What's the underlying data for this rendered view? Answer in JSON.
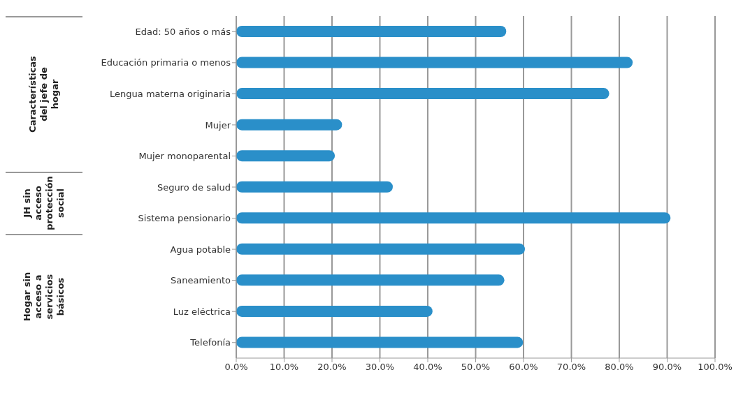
{
  "chart_data": {
    "type": "bar",
    "orientation": "horizontal",
    "categories": [
      "Edad: 50 años o más",
      "Educación primaria o menos",
      "Lengua materna originaria",
      "Mujer",
      "Mujer monoparental",
      "Seguro de salud",
      "Sistema pensionario",
      "Agua potable",
      "Saneamiento",
      "Luz eléctrica",
      "Telefonía"
    ],
    "values": [
      56.4,
      82.8,
      77.9,
      22.1,
      20.6,
      32.7,
      90.7,
      60.3,
      56.0,
      41.0,
      59.9
    ],
    "color": "#2a8fc9",
    "xlim": [
      0,
      100
    ],
    "xticks": [
      {
        "value": 0,
        "label": "0.0%"
      },
      {
        "value": 10,
        "label": "10.0%"
      },
      {
        "value": 20,
        "label": "20.0%"
      },
      {
        "value": 30,
        "label": "30.0%"
      },
      {
        "value": 40,
        "label": "40.0%"
      },
      {
        "value": 50,
        "label": "50.0%"
      },
      {
        "value": 60,
        "label": "60.0%"
      },
      {
        "value": 70,
        "label": "70.0%"
      },
      {
        "value": 80,
        "label": "80.0%"
      },
      {
        "value": 90,
        "label": "90.0%"
      },
      {
        "value": 100,
        "label": "100.0%"
      }
    ],
    "grid": "x",
    "annotations": [
      "Características del jefe de hogar",
      "JH sin acceso protección social",
      "Hogar sin acceso a servicios básicos"
    ]
  }
}
